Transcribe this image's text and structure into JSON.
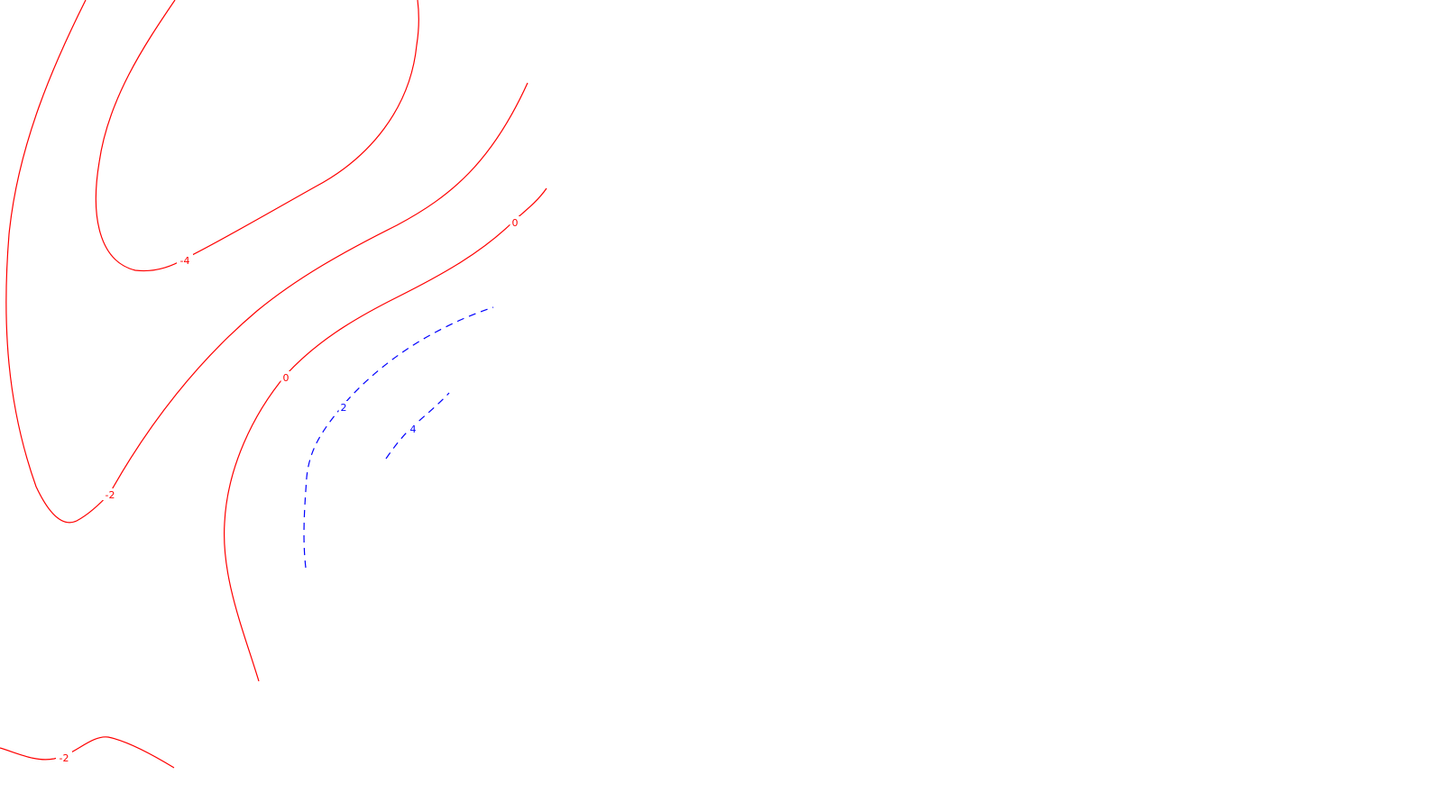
{
  "chart_data": {
    "type": "contour",
    "title": "",
    "xlabel": "",
    "ylabel": "",
    "grid": false,
    "legend": "none",
    "colors": {
      "negative": "#ff0000",
      "positive": "#0000ff",
      "background": "#ffffff"
    },
    "line_styles": {
      "negative": "solid",
      "positive": "dashed"
    },
    "levels": [
      -4,
      -2,
      0,
      2,
      4
    ],
    "contours": [
      {
        "level": -4,
        "label": "-4"
      },
      {
        "level": -2,
        "label": "-2"
      },
      {
        "level": 0,
        "label": "0"
      },
      {
        "level": 0,
        "label": "0"
      },
      {
        "level": 2,
        "label": "2"
      },
      {
        "level": 4,
        "label": "4"
      },
      {
        "level": -2,
        "label": "-2"
      }
    ]
  }
}
